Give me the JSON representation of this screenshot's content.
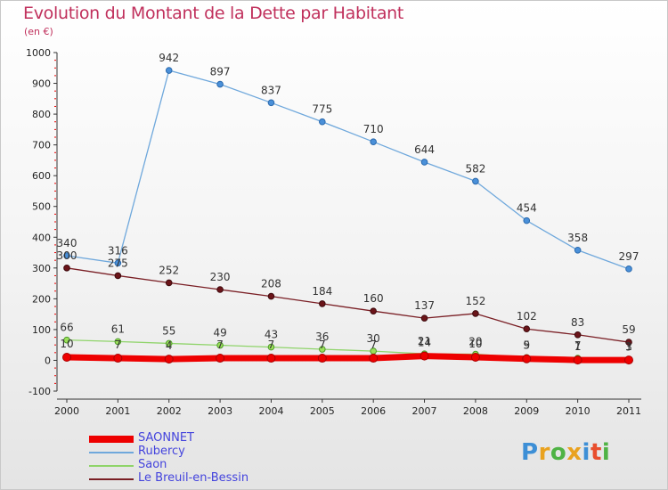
{
  "title": "Evolution du Montant de la Dette par Habitant",
  "unit_label": "(en €)",
  "logo_text": "Proxiti",
  "chart_data": {
    "type": "line",
    "title": "Evolution du Montant de la Dette par Habitant",
    "ylabel": "(en €)",
    "xlabel": "",
    "x": [
      "2000",
      "2001",
      "2002",
      "2003",
      "2004",
      "2005",
      "2006",
      "2007",
      "2008",
      "2009",
      "2010",
      "2011"
    ],
    "ylim": [
      -100,
      1000
    ],
    "yticks": [
      -100,
      0,
      100,
      200,
      300,
      400,
      500,
      600,
      700,
      800,
      900,
      1000
    ],
    "grid": false,
    "legend_position": "bottom-left",
    "series": [
      {
        "name": "SAONNET",
        "color": "#ee0000",
        "values": [
          10,
          7,
          4,
          7,
          7,
          7,
          7,
          14,
          10,
          5,
          1,
          1
        ],
        "labels": [
          "10",
          "7",
          "4",
          "7",
          "7",
          "7",
          "7",
          "14",
          "10",
          "5",
          "1",
          "1"
        ]
      },
      {
        "name": "Rubercy",
        "color": "#6fa8dc",
        "values": [
          340,
          316,
          942,
          897,
          837,
          775,
          710,
          644,
          582,
          454,
          358,
          297
        ],
        "labels": [
          "340",
          "316",
          "942",
          "897",
          "837",
          "775",
          "710",
          "644",
          "582",
          "454",
          "358",
          "297"
        ]
      },
      {
        "name": "Saon",
        "color": "#8fd46a",
        "values": [
          66,
          61,
          55,
          49,
          43,
          36,
          30,
          21,
          20,
          9,
          7,
          3
        ],
        "labels": [
          "66",
          "61",
          "55",
          "49",
          "43",
          "36",
          "30",
          "21",
          "20",
          "9",
          "7",
          "3"
        ]
      },
      {
        "name": "Le Breuil-en-Bessin",
        "color": "#7a1f25",
        "values": [
          300,
          275,
          252,
          230,
          208,
          184,
          160,
          137,
          152,
          102,
          83,
          59
        ],
        "labels": [
          "300",
          "275",
          "252",
          "230",
          "208",
          "184",
          "160",
          "137",
          "152",
          "102",
          "83",
          "59"
        ]
      }
    ]
  }
}
